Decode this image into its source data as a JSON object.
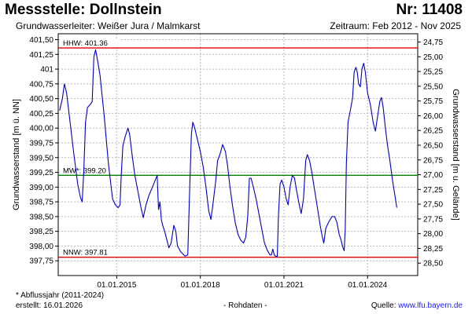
{
  "header": {
    "title": "Messstelle: Dollnstein",
    "station_number": "Nr: 11408",
    "aquifer": "Grundwasserleiter:   Weißer Jura / Malmkarst",
    "period": "Zeitraum: Feb 2012 - Nov 2025"
  },
  "footer": {
    "footnote": "* Abflussjahr (2011-2024)",
    "created": "erstellt:  16.01.2026",
    "data_type": "- Rohdaten -",
    "source_label": "Quelle: ",
    "source_url": "www.lfu.bayern.de"
  },
  "chart_data": {
    "type": "line",
    "ylabel_left": "Grundwasserstand [m ü. NN]",
    "ylabel_right": "Grundwasserstand [m u. Gelände]",
    "xlim": [
      2012.9,
      2025.8
    ],
    "ylim_left": [
      397.5,
      401.6
    ],
    "ylim_right": [
      28.71,
      24.61
    ],
    "x_ticks": [
      {
        "x": 2015.0,
        "label": "01.01.2015"
      },
      {
        "x": 2018.0,
        "label": "01.01.2018"
      },
      {
        "x": 2021.0,
        "label": "01.01.2021"
      },
      {
        "x": 2024.0,
        "label": "01.01.2024"
      }
    ],
    "y_ticks_left": [
      "401,50",
      "401,25",
      "401",
      "400,75",
      "400,50",
      "400,25",
      "400,00",
      "399,75",
      "399,50",
      "399,25",
      "399,00",
      "398,75",
      "398,50",
      "398,25",
      "398,00",
      "397,75"
    ],
    "y_ticks_left_values": [
      401.5,
      401.25,
      401.0,
      400.75,
      400.5,
      400.25,
      400.0,
      399.75,
      399.5,
      399.25,
      399.0,
      398.75,
      398.5,
      398.25,
      398.0,
      397.75
    ],
    "y_ticks_right": [
      "24,75",
      "25,00",
      "25,25",
      "25,50",
      "25,75",
      "26,00",
      "26,25",
      "26,50",
      "26,75",
      "27,00",
      "27,25",
      "27,50",
      "27,75",
      "28,00",
      "28,25",
      "28,50"
    ],
    "y_ticks_right_values": [
      24.75,
      25.0,
      25.25,
      25.5,
      25.75,
      26.0,
      26.25,
      26.5,
      26.75,
      27.0,
      27.25,
      27.5,
      27.75,
      28.0,
      28.25,
      28.5
    ],
    "grid": true,
    "reference_lines": [
      {
        "label": "HHW: 401.36",
        "value": 401.36,
        "color": "#e00000"
      },
      {
        "label": "MW*: 399.20",
        "value": 399.2,
        "color": "#008000"
      },
      {
        "label": "NNW: 397.81",
        "value": 397.81,
        "color": "#e00000"
      }
    ],
    "series": [
      {
        "color": "#0000cc",
        "points": [
          [
            2012.95,
            400.3
          ],
          [
            2013.05,
            400.5
          ],
          [
            2013.12,
            400.75
          ],
          [
            2013.2,
            400.6
          ],
          [
            2013.3,
            400.2
          ],
          [
            2013.45,
            399.6
          ],
          [
            2013.6,
            399.05
          ],
          [
            2013.7,
            398.82
          ],
          [
            2013.76,
            398.75
          ],
          [
            2013.82,
            399.3
          ],
          [
            2013.88,
            400.1
          ],
          [
            2013.95,
            400.35
          ],
          [
            2014.05,
            400.4
          ],
          [
            2014.12,
            400.45
          ],
          [
            2014.18,
            401.2
          ],
          [
            2014.24,
            401.33
          ],
          [
            2014.3,
            401.18
          ],
          [
            2014.4,
            400.9
          ],
          [
            2014.55,
            400.2
          ],
          [
            2014.7,
            399.4
          ],
          [
            2014.85,
            398.8
          ],
          [
            2014.95,
            398.7
          ],
          [
            2015.05,
            398.65
          ],
          [
            2015.12,
            398.7
          ],
          [
            2015.16,
            399.2
          ],
          [
            2015.22,
            399.7
          ],
          [
            2015.3,
            399.85
          ],
          [
            2015.4,
            400.0
          ],
          [
            2015.46,
            399.9
          ],
          [
            2015.55,
            399.55
          ],
          [
            2015.65,
            399.2
          ],
          [
            2015.75,
            398.95
          ],
          [
            2015.85,
            398.7
          ],
          [
            2015.95,
            398.48
          ],
          [
            2016.05,
            398.7
          ],
          [
            2016.15,
            398.85
          ],
          [
            2016.3,
            399.02
          ],
          [
            2016.45,
            399.2
          ],
          [
            2016.5,
            398.62
          ],
          [
            2016.55,
            398.75
          ],
          [
            2016.6,
            398.45
          ],
          [
            2016.65,
            398.35
          ],
          [
            2016.72,
            398.25
          ],
          [
            2016.8,
            398.1
          ],
          [
            2016.87,
            397.97
          ],
          [
            2016.95,
            398.05
          ],
          [
            2017.0,
            398.2
          ],
          [
            2017.05,
            398.35
          ],
          [
            2017.12,
            398.25
          ],
          [
            2017.18,
            398.0
          ],
          [
            2017.3,
            397.9
          ],
          [
            2017.45,
            397.83
          ],
          [
            2017.55,
            397.85
          ],
          [
            2017.62,
            399.0
          ],
          [
            2017.68,
            399.9
          ],
          [
            2017.73,
            400.1
          ],
          [
            2017.8,
            400.0
          ],
          [
            2017.9,
            399.8
          ],
          [
            2018.0,
            399.6
          ],
          [
            2018.1,
            399.35
          ],
          [
            2018.2,
            399.0
          ],
          [
            2018.3,
            398.6
          ],
          [
            2018.38,
            398.45
          ],
          [
            2018.45,
            398.7
          ],
          [
            2018.55,
            399.1
          ],
          [
            2018.62,
            399.45
          ],
          [
            2018.7,
            399.55
          ],
          [
            2018.8,
            399.72
          ],
          [
            2018.9,
            399.6
          ],
          [
            2018.98,
            399.35
          ],
          [
            2019.05,
            399.05
          ],
          [
            2019.15,
            398.7
          ],
          [
            2019.25,
            398.4
          ],
          [
            2019.35,
            398.2
          ],
          [
            2019.45,
            398.1
          ],
          [
            2019.55,
            398.05
          ],
          [
            2019.63,
            398.15
          ],
          [
            2019.7,
            398.5
          ],
          [
            2019.76,
            399.15
          ],
          [
            2019.82,
            399.15
          ],
          [
            2019.9,
            399.0
          ],
          [
            2020.0,
            398.8
          ],
          [
            2020.1,
            398.55
          ],
          [
            2020.2,
            398.3
          ],
          [
            2020.3,
            398.05
          ],
          [
            2020.4,
            397.93
          ],
          [
            2020.5,
            397.85
          ],
          [
            2020.55,
            397.85
          ],
          [
            2020.6,
            397.95
          ],
          [
            2020.65,
            397.85
          ],
          [
            2020.7,
            397.83
          ],
          [
            2020.76,
            397.82
          ],
          [
            2020.8,
            398.5
          ],
          [
            2020.86,
            399.05
          ],
          [
            2020.92,
            399.12
          ],
          [
            2021.0,
            399.0
          ],
          [
            2021.08,
            398.8
          ],
          [
            2021.15,
            398.7
          ],
          [
            2021.22,
            399.0
          ],
          [
            2021.3,
            399.2
          ],
          [
            2021.38,
            399.15
          ],
          [
            2021.45,
            398.95
          ],
          [
            2021.55,
            398.7
          ],
          [
            2021.62,
            398.55
          ],
          [
            2021.7,
            398.8
          ],
          [
            2021.78,
            399.45
          ],
          [
            2021.84,
            399.55
          ],
          [
            2021.92,
            399.45
          ],
          [
            2022.0,
            399.25
          ],
          [
            2022.1,
            398.95
          ],
          [
            2022.2,
            398.65
          ],
          [
            2022.3,
            398.35
          ],
          [
            2022.38,
            398.15
          ],
          [
            2022.43,
            398.05
          ],
          [
            2022.5,
            398.3
          ],
          [
            2022.6,
            398.4
          ],
          [
            2022.72,
            398.5
          ],
          [
            2022.82,
            398.5
          ],
          [
            2022.9,
            398.4
          ],
          [
            2022.98,
            398.2
          ],
          [
            2023.05,
            398.1
          ],
          [
            2023.1,
            398.0
          ],
          [
            2023.16,
            397.92
          ],
          [
            2023.2,
            398.3
          ],
          [
            2023.24,
            399.4
          ],
          [
            2023.3,
            400.1
          ],
          [
            2023.38,
            400.3
          ],
          [
            2023.46,
            400.5
          ],
          [
            2023.52,
            400.95
          ],
          [
            2023.58,
            401.03
          ],
          [
            2023.63,
            400.95
          ],
          [
            2023.68,
            400.75
          ],
          [
            2023.74,
            400.7
          ],
          [
            2023.8,
            401.0
          ],
          [
            2023.86,
            401.1
          ],
          [
            2023.92,
            400.95
          ],
          [
            2024.0,
            400.6
          ],
          [
            2024.1,
            400.4
          ],
          [
            2024.2,
            400.1
          ],
          [
            2024.28,
            399.95
          ],
          [
            2024.36,
            400.2
          ],
          [
            2024.44,
            400.45
          ],
          [
            2024.5,
            400.52
          ],
          [
            2024.56,
            400.35
          ],
          [
            2024.64,
            400.0
          ],
          [
            2024.72,
            399.7
          ],
          [
            2024.8,
            399.45
          ],
          [
            2024.9,
            399.1
          ],
          [
            2025.0,
            398.8
          ],
          [
            2025.05,
            398.65
          ]
        ]
      }
    ]
  }
}
